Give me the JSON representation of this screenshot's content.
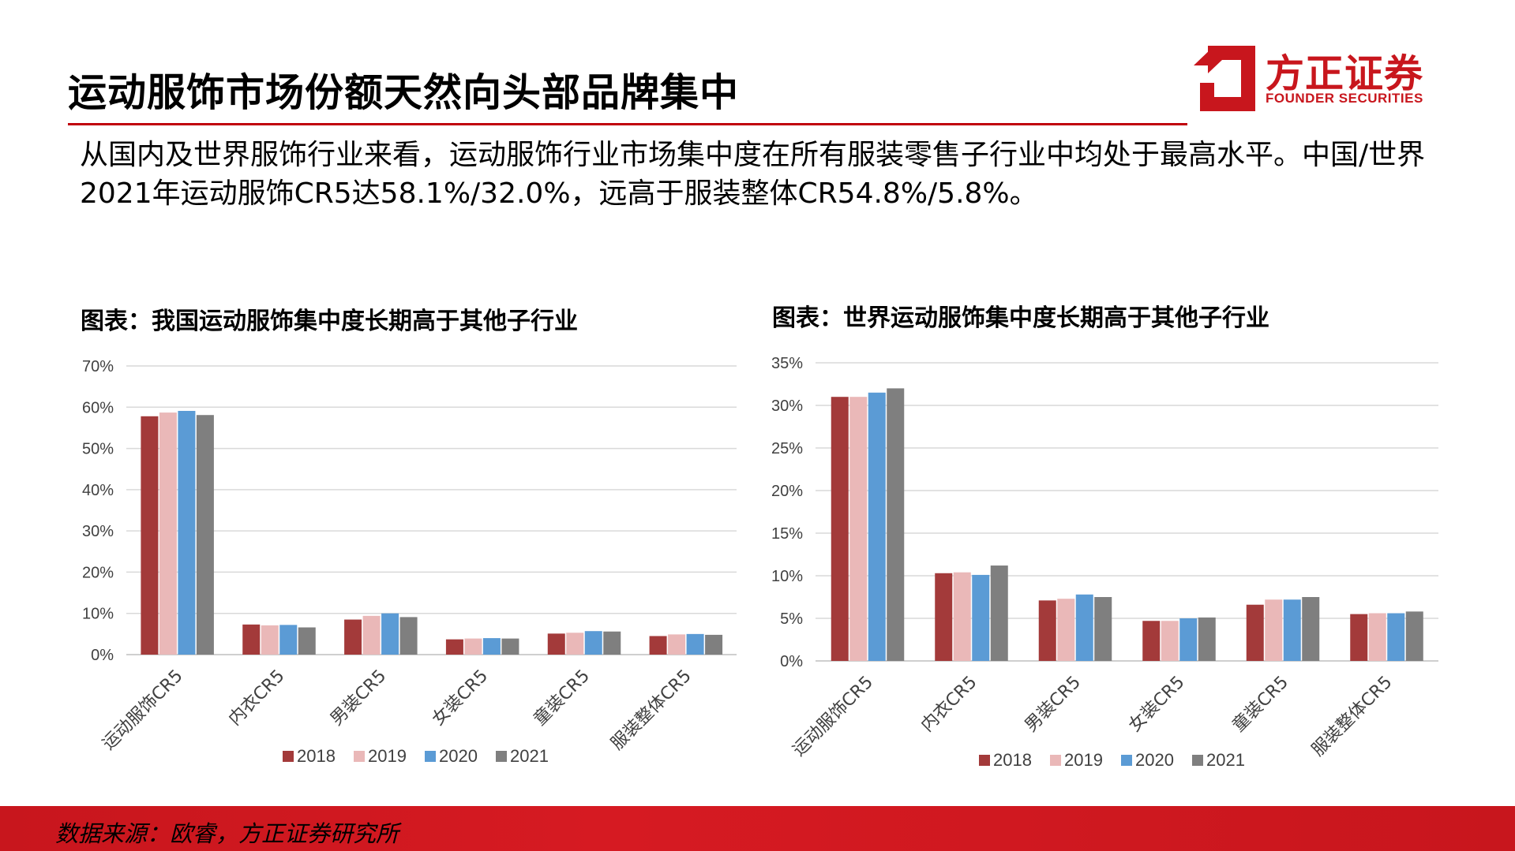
{
  "page": {
    "title": "运动服饰市场份额天然向头部品牌集中",
    "intro": "从国内及世界服饰行业来看，运动服饰行业市场集中度在所有服装零售子行业中均处于最高水平。中国/世界2021年运动服饰CR5达58.1%/32.0%，远高于服装整体CR54.8%/5.8%。",
    "source": "数据来源：欧睿，方正证券研究所"
  },
  "logo": {
    "name": "方正证券",
    "english": "FOUNDER SECURITIES"
  },
  "colors": {
    "accent": "#c8161d",
    "s2018": "#a33a3a",
    "s2019": "#eab8b8",
    "s2020": "#5b9bd5",
    "s2021": "#7f7f7f"
  },
  "chart_data": [
    {
      "type": "bar",
      "title": "图表：我国运动服饰集中度长期高于其他子行业",
      "categories": [
        "运动服饰CR5",
        "内衣CR5",
        "男装CR5",
        "女装CR5",
        "童装CR5",
        "服装整体CR5"
      ],
      "ylim": [
        0,
        70
      ],
      "yticks": [
        "0%",
        "10%",
        "20%",
        "30%",
        "40%",
        "50%",
        "60%",
        "70%"
      ],
      "grid": true,
      "legend": "bottom",
      "series": [
        {
          "name": "2018",
          "values": [
            57.8,
            7.3,
            8.5,
            3.7,
            5.1,
            4.5
          ]
        },
        {
          "name": "2019",
          "values": [
            58.7,
            7.1,
            9.4,
            3.9,
            5.3,
            4.9
          ]
        },
        {
          "name": "2020",
          "values": [
            59.1,
            7.2,
            10.0,
            4.0,
            5.7,
            5.0
          ]
        },
        {
          "name": "2021",
          "values": [
            58.1,
            6.6,
            9.1,
            3.9,
            5.6,
            4.8
          ]
        }
      ]
    },
    {
      "type": "bar",
      "title": "图表：世界运动服饰集中度长期高于其他子行业",
      "categories": [
        "运动服饰CR5",
        "内衣CR5",
        "男装CR5",
        "女装CR5",
        "童装CR5",
        "服装整体CR5"
      ],
      "ylim": [
        0,
        35
      ],
      "yticks": [
        "0%",
        "5%",
        "10%",
        "15%",
        "20%",
        "25%",
        "30%",
        "35%"
      ],
      "grid": true,
      "legend": "bottom",
      "series": [
        {
          "name": "2018",
          "values": [
            31.0,
            10.3,
            7.1,
            4.7,
            6.6,
            5.5
          ]
        },
        {
          "name": "2019",
          "values": [
            31.0,
            10.4,
            7.3,
            4.7,
            7.2,
            5.6
          ]
        },
        {
          "name": "2020",
          "values": [
            31.5,
            10.1,
            7.8,
            5.0,
            7.2,
            5.6
          ]
        },
        {
          "name": "2021",
          "values": [
            32.0,
            11.2,
            7.5,
            5.1,
            7.5,
            5.8
          ]
        }
      ]
    }
  ]
}
